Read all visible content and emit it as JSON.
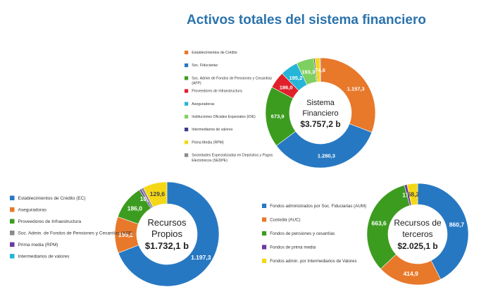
{
  "page_title": "Activos totales del sistema financiero",
  "chart_data": [
    {
      "type": "pie",
      "center_label": [
        "Sistema",
        "Financiero",
        "$3.757,2 b"
      ],
      "legend": [
        "Establecimientos de Crédito",
        "Soc. Fiduciarias",
        "Soc. Admin de Fondos de Pensiones y Cesantías (AFP)",
        "Proveedores de Infraestructura",
        "Aseguradoras",
        "Instituciones Oficiales Especiales (IOE)",
        "Intermediarios de valores",
        "Prima Media (RPM)",
        "Sociedades Especializadas en Depósitos y Pagos Electrónicos (SEDPE)"
      ],
      "slices": [
        {
          "label": "1.157,3",
          "value": 1157.3,
          "color": "#e8782a"
        },
        {
          "label": "1.280,3",
          "value": 1280.3,
          "color": "#2778c2"
        },
        {
          "label": "673,9",
          "value": 673.9,
          "color": "#3c9c1f"
        },
        {
          "label": "186,0",
          "value": 186.0,
          "color": "#e0202a"
        },
        {
          "label": "195,2",
          "value": 195.2,
          "color": "#25b5d8"
        },
        {
          "label": "193,3",
          "value": 193.3,
          "color": "#7ed060"
        },
        {
          "label": "",
          "value": 13.0,
          "color": "#3d3a8c"
        },
        {
          "label": "",
          "value": 54.0,
          "color": "#f5d815"
        },
        {
          "label": "74,6",
          "value": 8.0,
          "color": "#7a4aa0"
        }
      ]
    },
    {
      "type": "pie",
      "center_label": [
        "Recursos",
        "Propios",
        "$1.732,1 b"
      ],
      "legend": [
        "Establecimientos de Crédito (EC)",
        "Aseguradoras",
        "Proveedores de Infraestructura",
        "Soc. Admin. de Fondos de Pensiones y Cesantías (AFP)",
        "Prima media (RPM)",
        "Intermediarios de valores"
      ],
      "legend_colors": [
        "#2778c2",
        "#e8782a",
        "#3c9c1f",
        "#8a8a8a",
        "#6a3aa0",
        "#25b5d8"
      ],
      "slices": [
        {
          "label": "1.197,3",
          "value": 1197.3,
          "color": "#2778c2"
        },
        {
          "label": "195,2",
          "value": 195.2,
          "color": "#e8782a"
        },
        {
          "label": "186,0",
          "value": 186.0,
          "color": "#3c9c1f"
        },
        {
          "label": "10,3",
          "value": 10.3,
          "color": "#6a3aa0"
        },
        {
          "label": "",
          "value": 13.7,
          "color": "#8a8a8a"
        },
        {
          "label": "129,6",
          "value": 129.6,
          "color": "#f5d815"
        }
      ]
    },
    {
      "type": "pie",
      "center_label": [
        "Recursos de",
        "terceros",
        "$2.025,1 b"
      ],
      "legend": [
        "Fondos administrados por Soc. Fiduciarias (AUM)",
        "Custodia (AUC)",
        "Fondos de pensiones y cesantías",
        "Fondos de prima media",
        "Fondos admin. por Intermediarios de Valores"
      ],
      "legend_colors": [
        "#2778c2",
        "#e8782a",
        "#3c9c1f",
        "#6a3aa0",
        "#f5d815"
      ],
      "slices": [
        {
          "label": "860,7",
          "value": 860.7,
          "color": "#2778c2"
        },
        {
          "label": "414,9",
          "value": 414.9,
          "color": "#e8782a"
        },
        {
          "label": "663,6",
          "value": 663.6,
          "color": "#3c9c1f"
        },
        {
          "label": "17,7",
          "value": 17.7,
          "color": "#6a3aa0"
        },
        {
          "label": "68,2",
          "value": 68.2,
          "color": "#f5d815"
        }
      ]
    }
  ]
}
